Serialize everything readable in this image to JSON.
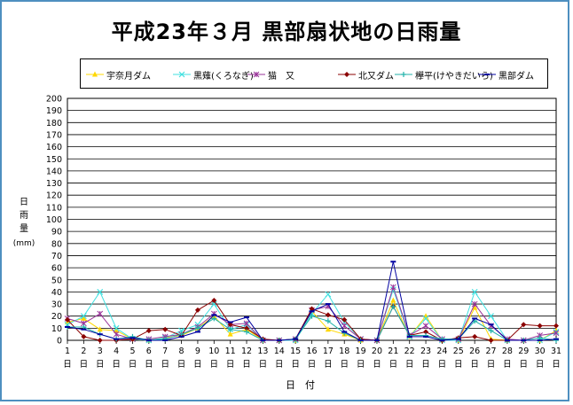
{
  "chart_data": {
    "type": "line",
    "title": "平成23年３月 黒部扇状地の日雨量",
    "xlabel": "日　付",
    "ylabel": "日雨量(mm)",
    "ylabel_chars": [
      "日",
      "雨",
      "量",
      "(mm)"
    ],
    "ylim": [
      0,
      200
    ],
    "ytick_step": 10,
    "grid": true,
    "legend_position": "top",
    "x": [
      1,
      2,
      3,
      4,
      5,
      6,
      7,
      8,
      9,
      10,
      11,
      12,
      13,
      14,
      15,
      16,
      17,
      18,
      19,
      20,
      21,
      22,
      23,
      24,
      25,
      26,
      27,
      28,
      29,
      30,
      31
    ],
    "x_unit_label": "日",
    "series": [
      {
        "name": "宇奈月ダム",
        "color": "#ffd800",
        "marker": "triangle",
        "values": [
          15,
          18,
          9,
          8,
          1,
          0,
          2,
          4,
          10,
          20,
          5,
          9,
          0,
          0,
          0,
          24,
          9,
          5,
          0,
          0,
          33,
          3,
          20,
          0,
          0,
          27,
          1,
          0,
          0,
          0,
          8
        ]
      },
      {
        "name": "黒薙(くろなぎ)",
        "color": "#40e0e0",
        "marker": "x",
        "values": [
          13,
          20,
          40,
          10,
          1,
          0,
          2,
          8,
          13,
          30,
          9,
          13,
          0,
          0,
          0,
          22,
          38,
          15,
          1,
          0,
          42,
          3,
          18,
          0,
          0,
          40,
          20,
          0,
          0,
          0,
          7
        ]
      },
      {
        "name": "猫　又",
        "color": "#993399",
        "marker": "asterisk",
        "values": [
          18,
          14,
          22,
          5,
          1,
          1,
          3,
          5,
          11,
          22,
          13,
          14,
          0,
          0,
          1,
          25,
          28,
          12,
          1,
          0,
          44,
          4,
          12,
          1,
          1,
          30,
          12,
          1,
          0,
          4,
          6
        ]
      },
      {
        "name": "北又ダム",
        "color": "#8b0000",
        "marker": "diamond",
        "values": [
          17,
          3,
          0,
          0,
          1,
          8,
          9,
          4,
          25,
          33,
          13,
          10,
          1,
          0,
          1,
          26,
          21,
          17,
          1,
          0,
          28,
          4,
          7,
          0,
          2,
          3,
          0,
          0,
          13,
          12,
          12
        ]
      },
      {
        "name": "欅平(けやきだいら)",
        "color": "#20b2aa",
        "marker": "plus",
        "values": [
          11,
          11,
          5,
          1,
          3,
          0,
          1,
          5,
          10,
          18,
          9,
          7,
          0,
          0,
          1,
          20,
          16,
          6,
          0,
          0,
          28,
          4,
          4,
          1,
          1,
          16,
          8,
          0,
          0,
          2,
          0
        ]
      },
      {
        "name": "黒部ダム",
        "color": "#0000a0",
        "marker": "dash",
        "values": [
          11,
          9,
          5,
          1,
          2,
          0,
          0,
          3,
          7,
          21,
          15,
          19,
          0,
          0,
          1,
          24,
          30,
          7,
          0,
          0,
          65,
          3,
          3,
          0,
          1,
          18,
          13,
          0,
          0,
          0,
          1
        ]
      }
    ]
  }
}
